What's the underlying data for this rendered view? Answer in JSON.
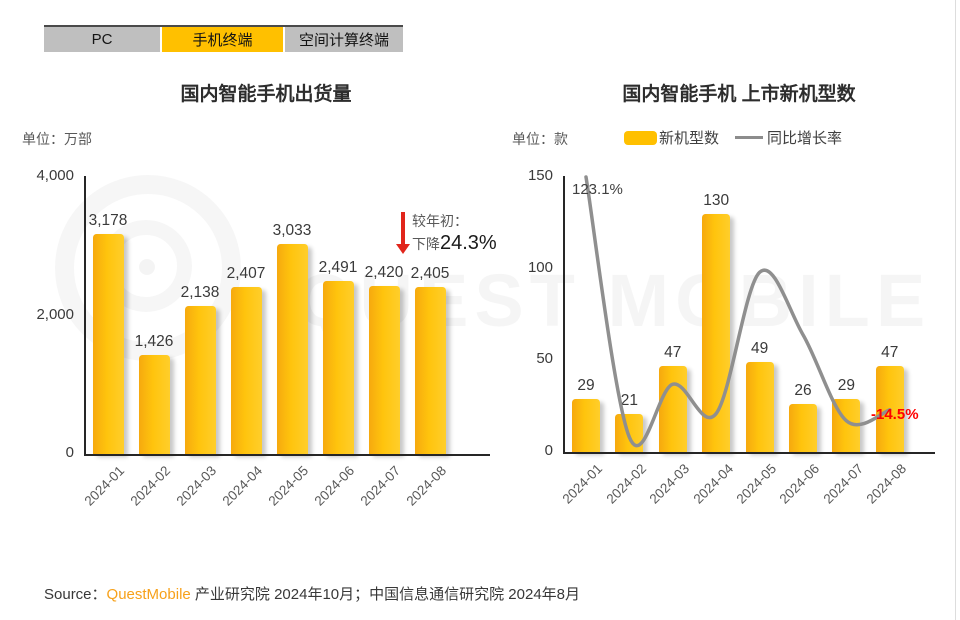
{
  "tabs": {
    "items": [
      {
        "label": "PC",
        "active": false
      },
      {
        "label": "手机终端",
        "active": true
      },
      {
        "label": "空间计算终端",
        "active": false
      }
    ],
    "active_color": "#FFC000",
    "inactive_color": "#BFBFBF"
  },
  "watermark": {
    "text": "QUEST MOBILE"
  },
  "source": {
    "prefix": "Source：",
    "brand": "QuestMobile",
    "suffix": " 产业研究院 2024年10月；中国信息通信研究院 2024年8月",
    "brand_color": "#F7A11A"
  },
  "chart_data": [
    {
      "type": "bar",
      "title": "国内智能手机出货量",
      "unit_label": "单位：万部",
      "categories": [
        "2024-01",
        "2024-02",
        "2024-03",
        "2024-04",
        "2024-05",
        "2024-06",
        "2024-07",
        "2024-08"
      ],
      "values": [
        3178,
        1426,
        2138,
        2407,
        3033,
        2491,
        2420,
        2405
      ],
      "value_labels": [
        "3,178",
        "1,426",
        "2,138",
        "2,407",
        "3,033",
        "2,491",
        "2,420",
        "2,405"
      ],
      "ylim": [
        0,
        4000
      ],
      "yticks": [
        {
          "value": 4000,
          "label": "4,000"
        },
        {
          "value": 2000,
          "label": "2,000"
        },
        {
          "value": 0,
          "label": "0"
        }
      ],
      "bar_color": "#FFC20E",
      "grid": false,
      "annotation": {
        "line1": "较年初：",
        "line2_prefix": "下降",
        "line2_value": "24.3%",
        "arrow_direction": "down",
        "arrow_color": "#E1251B"
      }
    },
    {
      "type": "bar+line",
      "title": "国内智能手机 上市新机型数",
      "unit_label": "单位：款",
      "legend": [
        {
          "label": "新机型数",
          "marker": "bar",
          "color": "#FFC000"
        },
        {
          "label": "同比增长率",
          "marker": "line",
          "color": "#8C8C8C"
        }
      ],
      "categories": [
        "2024-01",
        "2024-02",
        "2024-03",
        "2024-04",
        "2024-05",
        "2024-06",
        "2024-07",
        "2024-08"
      ],
      "series": [
        {
          "name": "新机型数",
          "type": "bar",
          "values": [
            29,
            21,
            47,
            130,
            49,
            26,
            29,
            47
          ]
        },
        {
          "name": "同比增长率",
          "type": "line",
          "color": "#8C8C8C",
          "point_labels": {
            "first": "123.1%",
            "last": "-14.5%"
          },
          "visual_values_axis_units": [
            150,
            8,
            37,
            21,
            98,
            64,
            17,
            23
          ]
        }
      ],
      "ylim": [
        0,
        150
      ],
      "yticks": [
        {
          "value": 150,
          "label": "150"
        },
        {
          "value": 100,
          "label": "100"
        },
        {
          "value": 50,
          "label": "50"
        },
        {
          "value": 0,
          "label": "0"
        }
      ],
      "grid": false,
      "annotations": {
        "first_point": "123.1%",
        "last_point": "-14.5%",
        "last_point_color": "#FF0000"
      }
    }
  ]
}
